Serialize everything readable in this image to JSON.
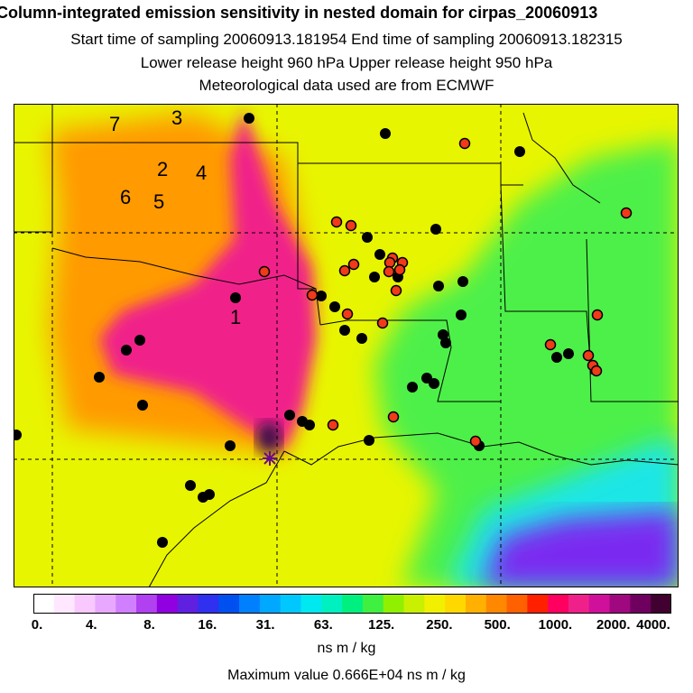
{
  "titles": {
    "line1": "Column-integrated emission sensitivity in nested domain for cirpas_20060913",
    "line2": "Start time of sampling 20060913.181954     End time of sampling 20060913.182315",
    "line3": "Lower release height  960 hPa       Upper release height  950 hPa",
    "line4": "Meteorological data used are from ECMWF"
  },
  "map": {
    "cluster_labels": [
      "7",
      "3",
      "2",
      "4",
      "6",
      "5",
      "1"
    ],
    "colors": {
      "background": "#e8f500",
      "magenta": "#f0208a",
      "orange": "#ff9a00",
      "green": "#4ef04a",
      "cyan": "#1ee6e6",
      "violet": "#7a2cf0",
      "max_marker": "#3a0a4a"
    }
  },
  "colorbar": {
    "swatches": [
      "#ffffff",
      "#ffe8ff",
      "#f8c8ff",
      "#e8a8ff",
      "#d080ff",
      "#b040f0",
      "#9000e0",
      "#6020e0",
      "#3030f0",
      "#0050f0",
      "#0080ff",
      "#00a8ff",
      "#00c8ff",
      "#00e8f0",
      "#00f0c0",
      "#00f080",
      "#40f040",
      "#90f000",
      "#c8f000",
      "#f0f000",
      "#ffd800",
      "#ffb000",
      "#ff8800",
      "#ff6000",
      "#ff2000",
      "#ff0060",
      "#f0208a",
      "#d0109a",
      "#a00880",
      "#700060",
      "#400030"
    ],
    "ticks": [
      "0.",
      "4.",
      "8.",
      "16.",
      "31.",
      "63.",
      "125.",
      "250.",
      "500.",
      "1000.",
      "2000.",
      "4000."
    ]
  },
  "unit": "ns m / kg",
  "max_value": "Maximum value  0.666E+04 ns m / kg"
}
